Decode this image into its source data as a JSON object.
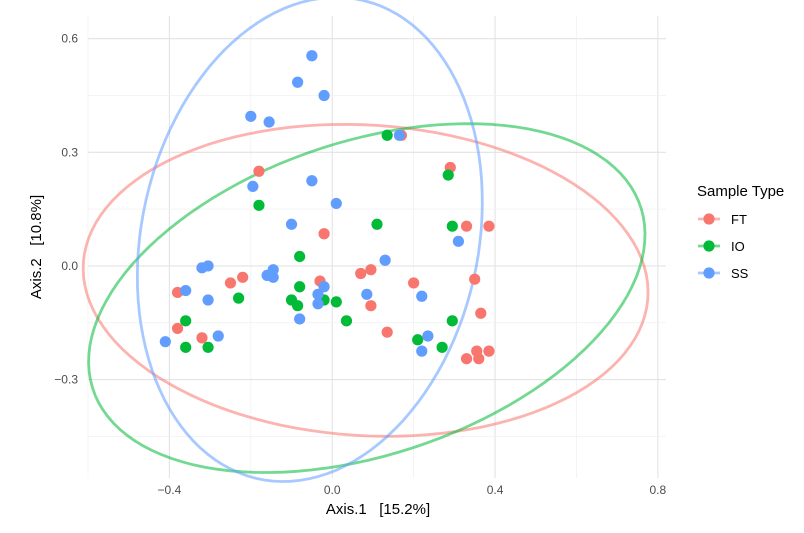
{
  "chart_data": {
    "type": "scatter",
    "xlabel": "Axis.1   [15.2%]",
    "ylabel": "Axis.2   [10.8%]",
    "xlim": [
      -0.6,
      0.82
    ],
    "ylim": [
      -0.56,
      0.66
    ],
    "x_ticks": [
      -0.4,
      0.0,
      0.4,
      0.8
    ],
    "x_tick_labels": [
      "−0.4",
      "0.0",
      "0.4",
      "0.8"
    ],
    "y_ticks": [
      -0.3,
      0.0,
      0.3,
      0.6
    ],
    "y_tick_labels": [
      "−0.3",
      "0.0",
      "0.3",
      "0.6"
    ],
    "grid": true,
    "legend": {
      "title": "Sample Type",
      "position": "right",
      "entries": [
        "FT",
        "IO",
        "SS"
      ]
    },
    "colors": {
      "FT": "#F8766D",
      "IO": "#00BA38",
      "SS": "#619CFF"
    },
    "series": [
      {
        "name": "FT",
        "color": "#F8766D",
        "points": [
          [
            -0.18,
            0.25
          ],
          [
            0.29,
            0.26
          ],
          [
            0.17,
            0.345
          ],
          [
            0.33,
            0.105
          ],
          [
            0.385,
            0.105
          ],
          [
            -0.25,
            -0.045
          ],
          [
            -0.22,
            -0.03
          ],
          [
            -0.38,
            -0.07
          ],
          [
            -0.38,
            -0.165
          ],
          [
            -0.32,
            -0.19
          ],
          [
            -0.02,
            0.085
          ],
          [
            -0.03,
            -0.04
          ],
          [
            0.07,
            -0.02
          ],
          [
            0.095,
            -0.01
          ],
          [
            0.095,
            -0.105
          ],
          [
            0.2,
            -0.045
          ],
          [
            0.35,
            -0.035
          ],
          [
            0.365,
            -0.125
          ],
          [
            0.135,
            -0.175
          ],
          [
            0.33,
            -0.245
          ],
          [
            0.355,
            -0.225
          ],
          [
            0.36,
            -0.245
          ],
          [
            0.385,
            -0.225
          ]
        ]
      },
      {
        "name": "IO",
        "color": "#00BA38",
        "points": [
          [
            0.135,
            0.345
          ],
          [
            0.285,
            0.24
          ],
          [
            0.295,
            0.105
          ],
          [
            0.11,
            0.11
          ],
          [
            -0.18,
            0.16
          ],
          [
            -0.08,
            0.025
          ],
          [
            -0.23,
            -0.085
          ],
          [
            -0.1,
            -0.09
          ],
          [
            -0.085,
            -0.105
          ],
          [
            -0.08,
            -0.055
          ],
          [
            -0.02,
            -0.09
          ],
          [
            0.01,
            -0.095
          ],
          [
            0.035,
            -0.145
          ],
          [
            -0.36,
            -0.145
          ],
          [
            -0.36,
            -0.215
          ],
          [
            -0.305,
            -0.215
          ],
          [
            0.21,
            -0.195
          ],
          [
            0.27,
            -0.215
          ],
          [
            0.295,
            -0.145
          ]
        ]
      },
      {
        "name": "SS",
        "color": "#619CFF",
        "points": [
          [
            -0.05,
            0.555
          ],
          [
            -0.085,
            0.485
          ],
          [
            -0.02,
            0.45
          ],
          [
            -0.2,
            0.395
          ],
          [
            -0.155,
            0.38
          ],
          [
            0.165,
            0.345
          ],
          [
            -0.195,
            0.21
          ],
          [
            -0.05,
            0.225
          ],
          [
            0.01,
            0.165
          ],
          [
            -0.1,
            0.11
          ],
          [
            0.13,
            0.015
          ],
          [
            0.31,
            0.065
          ],
          [
            -0.16,
            -0.025
          ],
          [
            -0.145,
            -0.03
          ],
          [
            -0.145,
            -0.01
          ],
          [
            -0.32,
            -0.005
          ],
          [
            -0.305,
            0.0
          ],
          [
            -0.36,
            -0.065
          ],
          [
            -0.305,
            -0.09
          ],
          [
            -0.28,
            -0.185
          ],
          [
            -0.41,
            -0.2
          ],
          [
            -0.035,
            -0.075
          ],
          [
            -0.02,
            -0.055
          ],
          [
            -0.035,
            -0.1
          ],
          [
            -0.08,
            -0.14
          ],
          [
            0.085,
            -0.075
          ],
          [
            0.22,
            -0.08
          ],
          [
            0.235,
            -0.185
          ],
          [
            0.22,
            -0.225
          ]
        ]
      }
    ],
    "ellipses": [
      {
        "name": "FT",
        "color": "#F8766D",
        "center": [
          0.082,
          -0.038
        ],
        "radii": [
          0.695,
          0.41
        ],
        "angle_deg": -4
      },
      {
        "name": "IO",
        "color": "#00BA38",
        "center": [
          0.085,
          -0.085
        ],
        "radii": [
          0.715,
          0.41
        ],
        "angle_deg": 21
      },
      {
        "name": "SS",
        "color": "#619CFF",
        "center": [
          -0.055,
          0.07
        ],
        "radii": [
          0.415,
          0.645
        ],
        "angle_deg": -10
      }
    ]
  }
}
